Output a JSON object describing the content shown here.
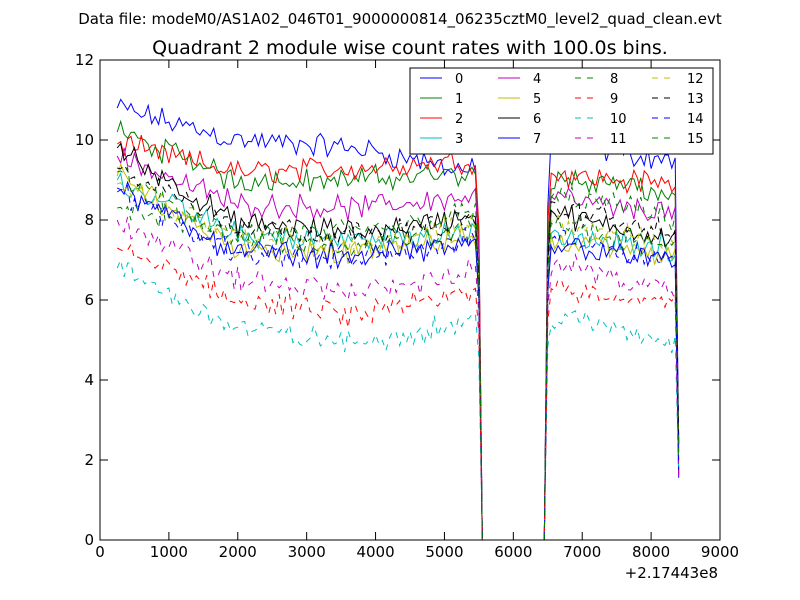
{
  "header": {
    "data_file": "Data file: modeM0/AS1A02_046T01_9000000814_06235cztM0_level2_quad_clean.evt"
  },
  "chart_data": {
    "type": "line",
    "title": "Quadrant 2 module wise count rates with 100.0s bins.",
    "xlabel": "",
    "ylabel": "",
    "x_offset_label": "+2.17443e8",
    "xlim": [
      0,
      9000
    ],
    "ylim": [
      0,
      12
    ],
    "x_ticks": [
      "0",
      "1000",
      "2000",
      "3000",
      "4000",
      "5000",
      "6000",
      "7000",
      "8000",
      "9000"
    ],
    "y_ticks": [
      "0",
      "2",
      "4",
      "6",
      "8",
      "10",
      "12"
    ],
    "legend_position": "top-right",
    "segments": [
      {
        "x_start": 250,
        "x_end": 5450
      },
      {
        "x_start": 6550,
        "x_end": 8350
      }
    ],
    "drop_points": [
      5550,
      5600,
      6400,
      6450
    ],
    "end_x": 8400,
    "series": [
      {
        "name": "0",
        "style": "solid",
        "color": "#0000ff",
        "seg1": [
          10.8,
          10.0,
          9.8,
          9.2
        ],
        "seg2": [
          10.0,
          9.7,
          9.5
        ]
      },
      {
        "name": "1",
        "style": "solid",
        "color": "#008000",
        "seg1": [
          10.2,
          9.0,
          9.0,
          9.2
        ],
        "seg2": [
          9.0,
          8.9,
          8.6
        ]
      },
      {
        "name": "2",
        "style": "solid",
        "color": "#ff0000",
        "seg1": [
          9.9,
          9.2,
          9.3,
          9.5
        ],
        "seg2": [
          9.2,
          9.0,
          8.9
        ]
      },
      {
        "name": "3",
        "style": "solid",
        "color": "#00bfbf",
        "seg1": [
          9.0,
          7.6,
          7.5,
          7.7
        ],
        "seg2": [
          7.6,
          7.4,
          7.3
        ]
      },
      {
        "name": "4",
        "style": "solid",
        "color": "#bf00bf",
        "seg1": [
          9.6,
          8.4,
          8.3,
          8.6
        ],
        "seg2": [
          8.6,
          8.3,
          8.2
        ]
      },
      {
        "name": "5",
        "style": "solid",
        "color": "#bfbf00",
        "seg1": [
          9.1,
          7.3,
          7.2,
          7.6
        ],
        "seg2": [
          7.5,
          7.3,
          7.1
        ]
      },
      {
        "name": "6",
        "style": "solid",
        "color": "#000000",
        "seg1": [
          9.8,
          7.9,
          7.7,
          8.1
        ],
        "seg2": [
          8.2,
          7.8,
          7.6
        ]
      },
      {
        "name": "7",
        "style": "solid",
        "color": "#0000ff",
        "seg1": [
          8.8,
          7.2,
          7.1,
          7.4
        ],
        "seg2": [
          7.4,
          7.2,
          6.9
        ]
      },
      {
        "name": "8",
        "style": "dashed",
        "color": "#008000",
        "seg1": [
          8.3,
          7.7,
          7.7,
          8.2
        ],
        "seg2": [
          8.6,
          8.4,
          8.0
        ]
      },
      {
        "name": "9",
        "style": "dashed",
        "color": "#ff0000",
        "seg1": [
          7.3,
          6.0,
          5.6,
          6.2
        ],
        "seg2": [
          6.4,
          6.1,
          6.0
        ]
      },
      {
        "name": "10",
        "style": "dashed",
        "color": "#00bfbf",
        "seg1": [
          6.8,
          5.3,
          4.9,
          5.5
        ],
        "seg2": [
          5.6,
          5.3,
          4.9
        ]
      },
      {
        "name": "11",
        "style": "dashed",
        "color": "#bf00bf",
        "seg1": [
          8.0,
          6.5,
          6.2,
          6.7
        ],
        "seg2": [
          6.9,
          6.6,
          6.1
        ]
      },
      {
        "name": "12",
        "style": "dashed",
        "color": "#bfbf00",
        "seg1": [
          8.9,
          7.6,
          7.3,
          7.9
        ],
        "seg2": [
          8.0,
          7.7,
          7.4
        ]
      },
      {
        "name": "13",
        "style": "dashed",
        "color": "#000000",
        "seg1": [
          9.3,
          7.9,
          7.6,
          8.0
        ],
        "seg2": [
          8.3,
          8.0,
          7.7
        ]
      },
      {
        "name": "14",
        "style": "dashed",
        "color": "#0000ff",
        "seg1": [
          8.7,
          7.2,
          7.0,
          7.5
        ],
        "seg2": [
          7.6,
          7.3,
          7.0
        ]
      },
      {
        "name": "15",
        "style": "dashed",
        "color": "#008000",
        "seg1": [
          9.2,
          7.5,
          7.3,
          7.8
        ],
        "seg2": [
          7.9,
          7.6,
          7.3
        ]
      }
    ]
  }
}
